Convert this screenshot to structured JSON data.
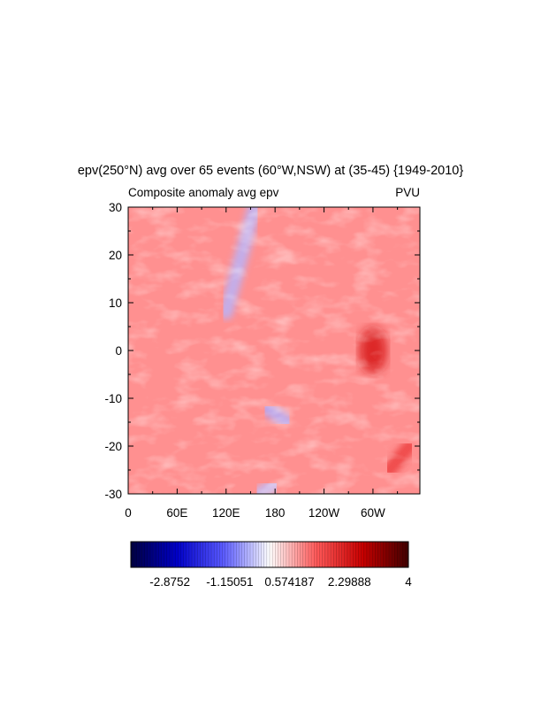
{
  "chart_data": {
    "type": "heatmap",
    "title": "epv(250°N) avg over 65 events (60°W,NSW) at (35-45) {1949-2010}",
    "left_subtitle": "Composite anomaly avg epv",
    "right_subtitle": "PVU",
    "x_tick_labels": [
      "0",
      "60E",
      "120E",
      "180",
      "120W",
      "60W"
    ],
    "x_tick_lons": [
      0,
      60,
      120,
      180,
      240,
      300
    ],
    "x_range": [
      0,
      357.5
    ],
    "y_tick_labels": [
      "30",
      "20",
      "10",
      "0",
      "-10",
      "-20",
      "-30"
    ],
    "y_tick_values": [
      30,
      20,
      10,
      0,
      -10,
      -20,
      -30
    ],
    "y_range": [
      -30,
      30
    ],
    "colorbar": {
      "min": -4,
      "max": 4,
      "label_text": [
        "-2.8752",
        "-1.15051",
        "0.574187",
        "2.29888",
        "4"
      ],
      "label_values": [
        -2.8752,
        -1.15051,
        0.574187,
        2.29888,
        4
      ],
      "palette": [
        "#000040",
        "#0000c8",
        "#5a5aff",
        "#ffffff",
        "#ff5a5a",
        "#c80000",
        "#400000"
      ]
    },
    "field_summary": {
      "background_value": 0.9,
      "features": [
        {
          "note": "weak negative streak",
          "lon_start": 155,
          "lat_start": 30,
          "lon_end": 120,
          "lat_end": 8,
          "value": -0.6
        },
        {
          "note": "weak negative patch",
          "lon_start": 170,
          "lat_start": -12,
          "lon_end": 195,
          "lat_end": -15,
          "value": -0.7
        },
        {
          "note": "weak negative patch",
          "lon_start": 180,
          "lat_start": -28,
          "lon_end": 160,
          "lat_end": -30,
          "value": -0.5
        },
        {
          "note": "positive maximum",
          "lon": 300,
          "lat": 0,
          "value": 2.3
        },
        {
          "note": "positive band",
          "lon_start": 320,
          "lat_start": -25,
          "lon_end": 345,
          "lat_end": -20,
          "value": 1.8
        }
      ]
    }
  }
}
